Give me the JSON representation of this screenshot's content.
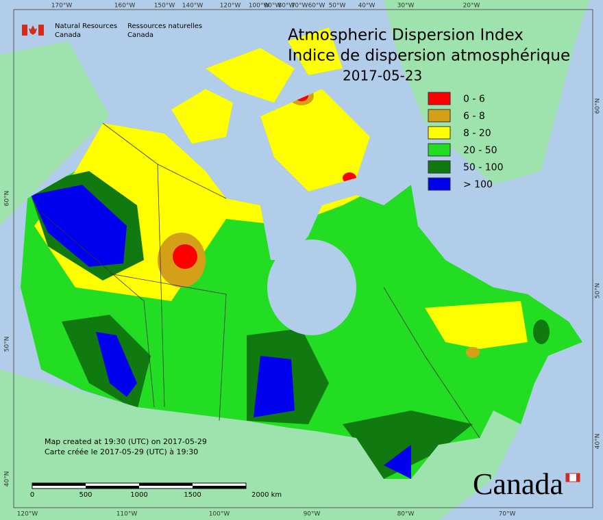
{
  "header": {
    "org_en": [
      "Natural Resources",
      "Canada"
    ],
    "org_fr": [
      "Ressources naturelles",
      "Canada"
    ]
  },
  "title": [
    "Atmospheric Dispersion Index",
    "Indice de dispersion atmosphérique"
  ],
  "date": "2017-05-23",
  "legend": [
    {
      "label": "0 - 6",
      "color": "#ff0000"
    },
    {
      "label": "6 - 8",
      "color": "#d4a017"
    },
    {
      "label": "8 - 20",
      "color": "#ffff00"
    },
    {
      "label": "20 - 50",
      "color": "#22dd22"
    },
    {
      "label": "50 - 100",
      "color": "#107a10"
    },
    {
      "label": "> 100",
      "color": "#0000ee"
    }
  ],
  "graticule": {
    "top": [
      "170°W",
      "160°W",
      "150°W",
      "140°W",
      "120°W",
      "100°W",
      "90°W",
      "80°W",
      "70°W",
      "60°W",
      "50°W",
      "40°W",
      "30°W",
      "20°W"
    ],
    "bottom": [
      "120°W",
      "110°W",
      "100°W",
      "90°W",
      "80°W",
      "70°W"
    ],
    "left": [
      "60°N",
      "50°N",
      "40°N"
    ],
    "right": [
      "60°N",
      "50°N",
      "40°N"
    ]
  },
  "credits": [
    "Map created at 19:30 (UTC) on 2017-05-29",
    "Carte créée le 2017-05-29 (UTC) à 19:30"
  ],
  "scale_bar": [
    "0",
    "500",
    "1000",
    "1500",
    "2000 km"
  ],
  "wordmark": "Canada"
}
